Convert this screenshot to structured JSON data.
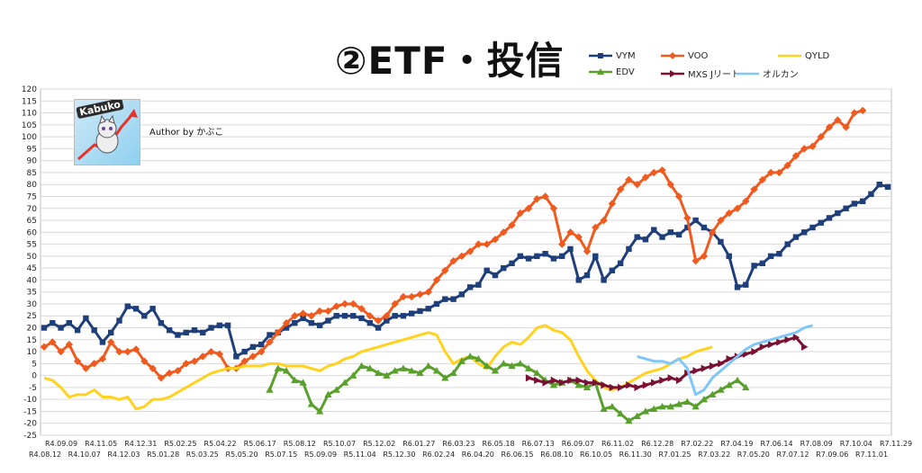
{
  "chart_data": {
    "type": "line",
    "title": "②ETF・投信",
    "ylim": [
      -25,
      120
    ],
    "y_ticks": [
      -25,
      -20,
      -15,
      -10,
      -5,
      0,
      5,
      10,
      15,
      20,
      25,
      30,
      35,
      40,
      45,
      50,
      55,
      60,
      65,
      70,
      75,
      80,
      85,
      90,
      95,
      100,
      105,
      110,
      115,
      120
    ],
    "grid": "horizontal",
    "legend_position": "top-right",
    "x_labels_upper": [
      "R4.09.09",
      "R4.11.05",
      "R4.12.31",
      "R5.02.25",
      "R5.04.22",
      "R5.06.17",
      "R5.08.12",
      "R5.10.07",
      "R5.12.02",
      "R6.01.27",
      "R6.03.23",
      "R6.05.18",
      "R6.07.13",
      "R6.09.07",
      "R6.11.02",
      "R6.12.28",
      "R7.02.22",
      "R7.04.19",
      "R7.06.14",
      "R7.08.09",
      "R7.10.04",
      "R7.11.29"
    ],
    "x_labels_lower": [
      "R4.08.12",
      "R4.10.07",
      "R4.12.03",
      "R5.01.28",
      "R5.03.25",
      "R5.05.20",
      "R5.07.15",
      "R5.09.09",
      "R5.11.04",
      "R5.12.30",
      "R6.02.24",
      "R6.04.20",
      "R6.06.15",
      "R6.08.10",
      "R6.10.05",
      "R6.11.30",
      "R7.01.25",
      "R7.03.22",
      "R7.05.20",
      "R7.07.12",
      "R7.09.06",
      "R7.11.01"
    ],
    "series": [
      {
        "name": "VYM",
        "color": "#1f3f7a",
        "marker": "square",
        "start": 0,
        "values": [
          20,
          22,
          20,
          22,
          19,
          24,
          19,
          14,
          18,
          23,
          29,
          28,
          25,
          28,
          22,
          19,
          17,
          18,
          19,
          18,
          20,
          21,
          21,
          8,
          10,
          12,
          13,
          17,
          18,
          20,
          22,
          24,
          22,
          21,
          23,
          25,
          25,
          25,
          24,
          22,
          20,
          23,
          25,
          25,
          26,
          27,
          28,
          30,
          32,
          32,
          34,
          37,
          38,
          44,
          42,
          45,
          47,
          50,
          49,
          50,
          51,
          49,
          50,
          53,
          40,
          42,
          50,
          40,
          44,
          47,
          53,
          58,
          57,
          61,
          58,
          60,
          59,
          62,
          65,
          62,
          60,
          56,
          50,
          37,
          38,
          46,
          47,
          50,
          51,
          55,
          58,
          60,
          62,
          64,
          66,
          68,
          70,
          72,
          73,
          76,
          80,
          79
        ]
      },
      {
        "name": "VOO",
        "color": "#f05a1e",
        "marker": "diamond",
        "start": 0,
        "values": [
          12,
          14,
          10,
          13,
          6,
          3,
          5,
          7,
          14,
          10,
          10,
          11,
          6,
          3,
          -1,
          1,
          2,
          5,
          6,
          8,
          10,
          9,
          3,
          3,
          6,
          8,
          10,
          14,
          18,
          22,
          25,
          26,
          25,
          27,
          27,
          29,
          30,
          30,
          28,
          25,
          23,
          25,
          30,
          33,
          33,
          34,
          35,
          40,
          44,
          48,
          50,
          52,
          55,
          55,
          57,
          60,
          63,
          68,
          70,
          74,
          75,
          70,
          55,
          60,
          58,
          52,
          62,
          65,
          72,
          78,
          82,
          80,
          83,
          85,
          86,
          80,
          75,
          66,
          48,
          50,
          60,
          65,
          68,
          70,
          73,
          78,
          82,
          85,
          85,
          88,
          92,
          95,
          96,
          100,
          104,
          107,
          104,
          110,
          111
        ]
      },
      {
        "name": "QYLD",
        "color": "#ffd21e",
        "marker": "none",
        "start": 0,
        "values": [
          -1,
          -2,
          -5,
          -9,
          -8,
          -8,
          -6,
          -9,
          -9,
          -10,
          -9,
          -14,
          -13,
          -10,
          -10,
          -9,
          -7,
          -5,
          -3,
          -1,
          1,
          2,
          3,
          3,
          4,
          4,
          4,
          5,
          5,
          4,
          4,
          4,
          3,
          2,
          4,
          5,
          7,
          8,
          10,
          11,
          12,
          13,
          14,
          15,
          16,
          17,
          18,
          17,
          10,
          5,
          7,
          8,
          5,
          3,
          8,
          12,
          14,
          13,
          16,
          20,
          21,
          19,
          18,
          15,
          8,
          2,
          -2,
          -5,
          -6,
          -5,
          -3,
          -1,
          1,
          2,
          3,
          5,
          7,
          8,
          10,
          11,
          12
        ]
      },
      {
        "name": "EDV",
        "color": "#5aa02c",
        "marker": "triangle",
        "start": 27,
        "values": [
          -6,
          3,
          2,
          -2,
          -3,
          -12,
          -15,
          -8,
          -6,
          -3,
          0,
          4,
          3,
          1,
          0,
          2,
          3,
          2,
          1,
          4,
          2,
          -1,
          1,
          6,
          8,
          7,
          4,
          2,
          5,
          4,
          5,
          3,
          1,
          -2,
          -4,
          -3,
          -2,
          -4,
          -5,
          -3,
          -14,
          -13,
          -16,
          -19,
          -17,
          -15,
          -14,
          -13,
          -13,
          -12,
          -11,
          -13,
          -10,
          -8,
          -6,
          -4,
          -2,
          -5
        ]
      },
      {
        "name": "MXS Jリート",
        "color": "#7a1033",
        "marker": "triangle-right",
        "start": 58,
        "values": [
          -1,
          -2,
          -3,
          -2,
          -3,
          -2,
          -2,
          -3,
          -3,
          -4,
          -5,
          -5,
          -4,
          -5,
          -4,
          -3,
          -2,
          -1,
          -2,
          1,
          2,
          3,
          4,
          5,
          7,
          8,
          9,
          10,
          12,
          13,
          14,
          15,
          16,
          12
        ]
      },
      {
        "name": "オルカン",
        "color": "#7fc7f7",
        "marker": "none",
        "start": 71,
        "values": [
          8,
          7,
          6,
          6,
          5,
          7,
          3,
          -8,
          -6,
          -1,
          2,
          5,
          8,
          11,
          13,
          14,
          15,
          16,
          17,
          18,
          20,
          21
        ]
      }
    ]
  },
  "logo": {
    "text": "Kabuko"
  },
  "author": "Author by かぶこ",
  "colors": {
    "grid": "#d9d9d9",
    "background": "#ffffff"
  }
}
